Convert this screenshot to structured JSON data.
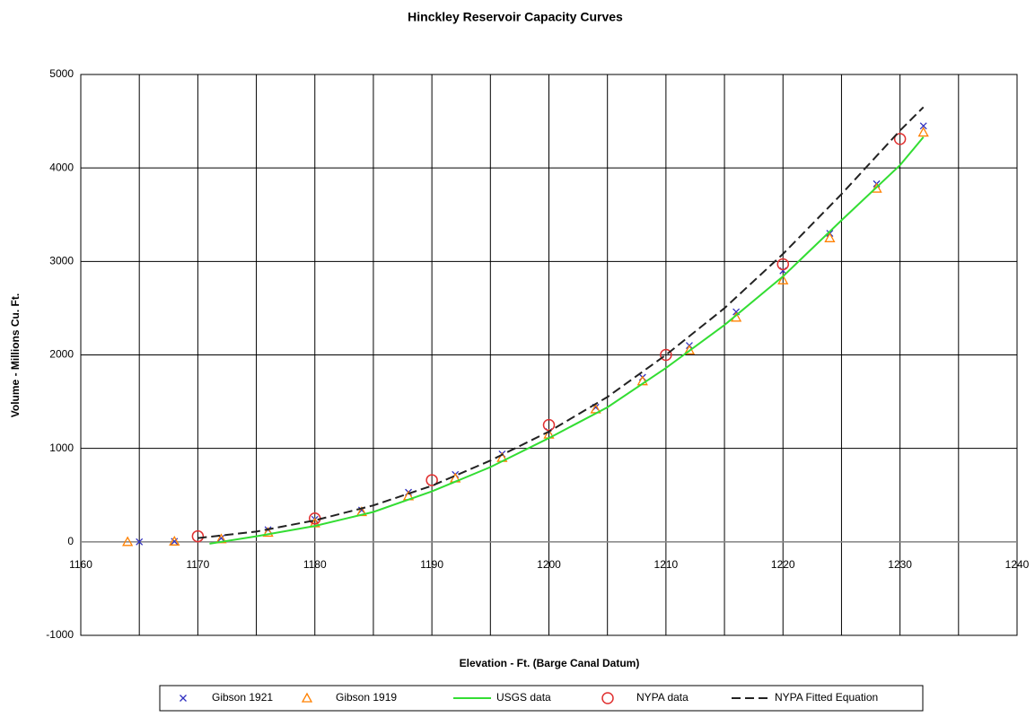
{
  "chart_data": {
    "type": "scatter",
    "title": "Hinckley Reservoir Capacity Curves",
    "xlabel": "Elevation - Ft. (Barge Canal Datum)",
    "ylabel": "Volume - Millions Cu. Ft.",
    "xlim": [
      1160,
      1240
    ],
    "ylim": [
      -1000,
      5000
    ],
    "xticks": [
      1160,
      1170,
      1180,
      1190,
      1200,
      1210,
      1220,
      1230,
      1240
    ],
    "xminor_ticks": [
      1165,
      1175,
      1185,
      1195,
      1205,
      1215,
      1225,
      1235
    ],
    "yticks": [
      -1000,
      0,
      1000,
      2000,
      3000,
      4000,
      5000
    ],
    "grid": true,
    "legend": "bottom",
    "series": [
      {
        "name": "Gibson 1921",
        "color": "#3030c0",
        "marker": "x",
        "x": [
          1165,
          1168,
          1172,
          1176,
          1180,
          1184,
          1188,
          1192,
          1196,
          1200,
          1204,
          1208,
          1212,
          1216,
          1220,
          1224,
          1228,
          1232
        ],
        "values": [
          0,
          5,
          40,
          130,
          240,
          340,
          530,
          720,
          940,
          1180,
          1440,
          1760,
          2100,
          2460,
          2900,
          3300,
          3830,
          4450
        ]
      },
      {
        "name": "Gibson 1919",
        "color": "#ff8000",
        "marker": "triangle",
        "x": [
          1164,
          1168,
          1172,
          1176,
          1180,
          1184,
          1188,
          1192,
          1196,
          1200,
          1204,
          1208,
          1212,
          1216,
          1220,
          1224,
          1228,
          1232
        ],
        "values": [
          0,
          5,
          30,
          100,
          200,
          320,
          490,
          680,
          900,
          1150,
          1420,
          1720,
          2050,
          2400,
          2800,
          3250,
          3780,
          4380
        ]
      },
      {
        "name": "USGS data",
        "color": "#33dd33",
        "line": "solid",
        "x": [
          1171,
          1175,
          1180,
          1185,
          1190,
          1195,
          1200,
          1205,
          1210,
          1215,
          1220,
          1225,
          1230,
          1232
        ],
        "values": [
          -20,
          60,
          170,
          320,
          540,
          800,
          1110,
          1440,
          1860,
          2320,
          2840,
          3440,
          4030,
          4330
        ]
      },
      {
        "name": "NYPA data",
        "color": "#e03030",
        "marker": "circle",
        "x": [
          1170,
          1180,
          1190,
          1200,
          1210,
          1220,
          1230
        ],
        "values": [
          60,
          250,
          660,
          1250,
          2000,
          2970,
          4310
        ]
      },
      {
        "name": "NYPA Fitted Equation",
        "color": "#222222",
        "line": "dashed",
        "x": [
          1170,
          1175,
          1180,
          1185,
          1190,
          1195,
          1200,
          1205,
          1210,
          1215,
          1220,
          1225,
          1230,
          1232
        ],
        "values": [
          40,
          110,
          230,
          390,
          600,
          870,
          1180,
          1550,
          2000,
          2500,
          3080,
          3720,
          4400,
          4650
        ]
      }
    ]
  }
}
